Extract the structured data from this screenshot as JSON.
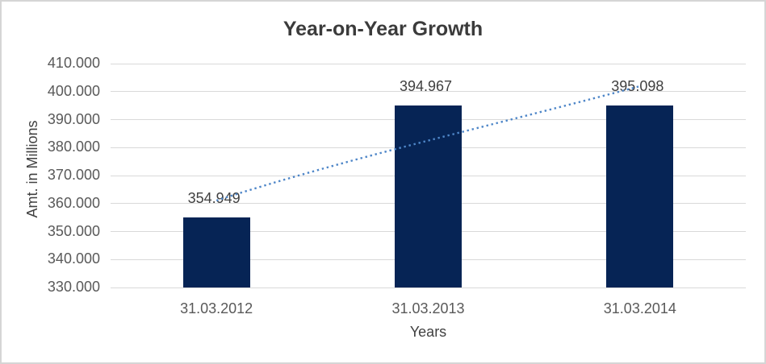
{
  "chart_data": {
    "type": "bar",
    "title": "Year-on-Year Growth",
    "xlabel": "Years",
    "ylabel": "Amt. in Millions",
    "categories": [
      "31.03.2012",
      "31.03.2013",
      "31.03.2014"
    ],
    "values": [
      354949,
      394967,
      395098
    ],
    "value_labels": [
      "354.949",
      "394.967",
      "395.098"
    ],
    "yticks": [
      410000,
      400000,
      390000,
      380000,
      370000,
      360000,
      350000,
      340000,
      330000
    ],
    "ytick_labels": [
      "410.000",
      "400.000",
      "390.000",
      "380.000",
      "370.000",
      "360.000",
      "350.000",
      "340.000",
      "330.000"
    ],
    "ylim": [
      330000,
      410000
    ],
    "grid": true,
    "legend": false,
    "bar_color": "#062455",
    "trendline": {
      "style": "dotted",
      "color": "#4e86c8"
    },
    "colors": {
      "title": "#3b3b3b",
      "tick_labels": "#595959",
      "data_labels": "#404040",
      "gridline": "#d9d9d9",
      "border": "#d5d5d5",
      "background": "#ffffff"
    }
  }
}
